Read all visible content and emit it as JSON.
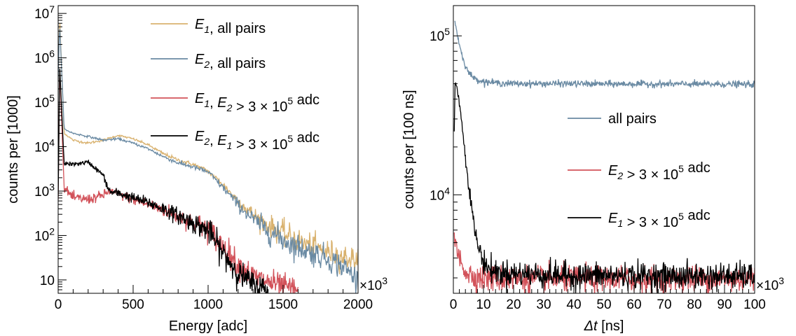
{
  "chart_data": [
    {
      "type": "line",
      "xlabel": "Energy [adc]",
      "ylabel": "counts per [1000]",
      "x_multiplier": "×10³",
      "xlim": [
        0,
        2000
      ],
      "ylim": [
        5,
        15000000
      ],
      "y_log": true,
      "xticks": [
        0,
        500,
        1000,
        1500,
        2000
      ],
      "yticks": [
        {
          "value": 10,
          "label": "10"
        },
        {
          "value": 100,
          "label": "10²"
        },
        {
          "value": 1000,
          "label": "10³"
        },
        {
          "value": 10000,
          "label": "10⁴"
        },
        {
          "value": 100000,
          "label": "10⁵"
        },
        {
          "value": 1000000,
          "label": "10⁶"
        },
        {
          "value": 10000000,
          "label": "10⁷"
        }
      ],
      "grid": false,
      "legend_position": "top-right",
      "series": [
        {
          "name": "E1, all pairs",
          "color": "#d9b26f",
          "x": [
            0,
            10,
            40,
            100,
            200,
            300,
            400,
            500,
            600,
            700,
            800,
            900,
            1000,
            1100,
            1200,
            1300,
            1400,
            1500,
            1600,
            1700,
            1800,
            1900,
            2000
          ],
          "y": [
            300000,
            8000000,
            20000,
            14000,
            12000,
            14000,
            18000,
            15000,
            11000,
            7000,
            5000,
            4000,
            2800,
            1400,
            600,
            300,
            170,
            110,
            75,
            55,
            42,
            33,
            28
          ]
        },
        {
          "name": "E2, all pairs",
          "color": "#6a8aa3",
          "x": [
            0,
            10,
            40,
            100,
            200,
            300,
            400,
            500,
            600,
            700,
            800,
            900,
            1000,
            1100,
            1200,
            1300,
            1400,
            1500,
            1600,
            1700,
            1800,
            1900,
            2000
          ],
          "y": [
            300000,
            6000000,
            25000,
            20000,
            17000,
            14000,
            15000,
            12000,
            9000,
            6000,
            4300,
            3500,
            2700,
            1200,
            500,
            230,
            130,
            80,
            55,
            40,
            30,
            20,
            10
          ]
        },
        {
          "name": "E1, E2 > 3 × 10⁵ adc",
          "color": "#d2525a",
          "x": [
            0,
            10,
            40,
            100,
            200,
            300,
            330,
            350,
            400,
            500,
            600,
            700,
            800,
            900,
            1000,
            1100,
            1200,
            1300,
            1400,
            1500,
            1600
          ],
          "y": [
            600,
            600000,
            1200,
            700,
            650,
            800,
            950,
            1000,
            850,
            650,
            500,
            380,
            280,
            200,
            140,
            60,
            22,
            12,
            9,
            7,
            6
          ]
        },
        {
          "name": "E2, E1 > 3 × 10⁵ adc",
          "color": "#000000",
          "x": [
            0,
            10,
            40,
            100,
            200,
            300,
            330,
            350,
            400,
            500,
            600,
            700,
            800,
            900,
            1000,
            1100,
            1200,
            1300,
            1400
          ],
          "y": [
            600,
            650000,
            4200,
            4000,
            4500,
            2300,
            1200,
            950,
            900,
            700,
            550,
            400,
            280,
            190,
            130,
            40,
            14,
            8,
            6
          ]
        }
      ]
    },
    {
      "type": "line",
      "xlabel": "Δt [ns]",
      "ylabel": "counts per [100 ns]",
      "x_multiplier": "×10³",
      "xlim": [
        0,
        100
      ],
      "ylim": [
        2400,
        155000
      ],
      "y_log": true,
      "xticks": [
        0,
        10,
        20,
        30,
        40,
        50,
        60,
        70,
        80,
        90,
        100
      ],
      "yticks": [
        {
          "value": 10000,
          "label": "10⁴"
        },
        {
          "value": 100000,
          "label": "10⁵"
        }
      ],
      "grid": false,
      "legend_position": "center-right",
      "series": [
        {
          "name": "all pairs",
          "color": "#6a8aa3",
          "x": [
            0.4,
            1,
            2,
            3,
            4,
            5,
            7,
            10,
            15,
            20,
            30,
            40,
            50,
            60,
            70,
            80,
            90,
            100
          ],
          "y": [
            125000,
            110000,
            88000,
            74000,
            65000,
            59000,
            54000,
            51500,
            50500,
            50000,
            50000,
            50000,
            49800,
            49800,
            49700,
            49700,
            49600,
            49500
          ]
        },
        {
          "name": "E2 > 3 × 10⁵ adc",
          "color": "#d2525a",
          "x": [
            0.3,
            1,
            2,
            3,
            4,
            5,
            7,
            10,
            15,
            20,
            30,
            40,
            50,
            60,
            70,
            80,
            90,
            100
          ],
          "y": [
            5200,
            4600,
            4000,
            3600,
            3350,
            3200,
            3050,
            2980,
            2950,
            2950,
            2950,
            2950,
            2950,
            2950,
            2950,
            2950,
            2950,
            2950
          ]
        },
        {
          "name": "E1 > 3 × 10⁵ adc",
          "color": "#000000",
          "x": [
            0.3,
            0.6,
            1,
            2,
            3,
            4,
            5,
            6,
            7,
            8,
            10,
            12,
            15,
            20,
            30,
            40,
            50,
            60,
            70,
            80,
            90,
            100
          ],
          "y": [
            25000,
            52000,
            50000,
            38000,
            26000,
            17500,
            12000,
            8500,
            6200,
            4900,
            3800,
            3400,
            3250,
            3200,
            3150,
            3100,
            3100,
            3100,
            3080,
            3080,
            3080,
            3080
          ]
        }
      ]
    }
  ]
}
